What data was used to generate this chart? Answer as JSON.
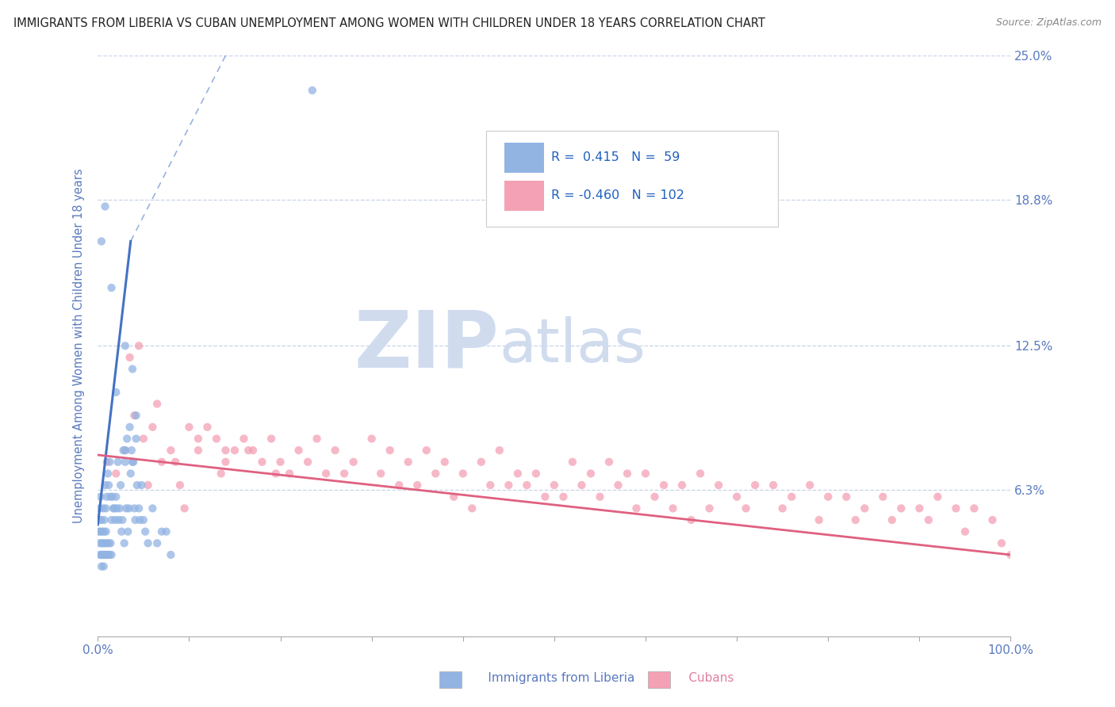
{
  "title": "IMMIGRANTS FROM LIBERIA VS CUBAN UNEMPLOYMENT AMONG WOMEN WITH CHILDREN UNDER 18 YEARS CORRELATION CHART",
  "source": "Source: ZipAtlas.com",
  "ylabel": "Unemployment Among Women with Children Under 18 years",
  "xlim": [
    0,
    100
  ],
  "ylim": [
    0,
    25
  ],
  "yticks": [
    0,
    6.3,
    12.5,
    18.8,
    25.0
  ],
  "ytick_labels": [
    "",
    "6.3%",
    "12.5%",
    "18.8%",
    "25.0%"
  ],
  "legend_R_blue": "0.415",
  "legend_N_blue": "59",
  "legend_R_pink": "-0.460",
  "legend_N_pink": "102",
  "blue_color": "#92b4e3",
  "pink_color": "#f4a0b5",
  "blue_line_color": "#4472c4",
  "pink_line_color": "#e06080",
  "watermark_zip": "ZIP",
  "watermark_atlas": "atlas",
  "watermark_color": "#d0dcee",
  "background_color": "#ffffff",
  "grid_color": "#c8d4e8",
  "blue_scatter_x": [
    0.2,
    0.3,
    0.4,
    0.5,
    0.6,
    0.7,
    0.8,
    0.9,
    1.0,
    1.1,
    1.2,
    1.3,
    1.4,
    1.5,
    1.6,
    1.7,
    1.8,
    1.9,
    2.0,
    2.1,
    2.2,
    2.3,
    2.4,
    2.5,
    2.6,
    2.7,
    2.8,
    2.9,
    3.0,
    3.1,
    3.2,
    3.3,
    3.4,
    3.5,
    3.6,
    3.7,
    3.8,
    3.9,
    4.0,
    4.1,
    4.2,
    4.3,
    4.5,
    4.6,
    4.8,
    5.0,
    5.2,
    5.5,
    6.0,
    6.5,
    7.0,
    7.5,
    8.0,
    2.0,
    3.8,
    0.4,
    0.8,
    1.5,
    3.0,
    4.2
  ],
  "blue_scatter_y": [
    5.5,
    6.0,
    5.0,
    4.5,
    5.5,
    5.0,
    6.5,
    5.5,
    6.0,
    7.0,
    6.5,
    7.5,
    6.0,
    5.0,
    6.0,
    5.5,
    5.5,
    5.0,
    6.0,
    5.5,
    7.5,
    5.0,
    5.5,
    6.5,
    4.5,
    5.0,
    8.0,
    4.0,
    7.5,
    5.5,
    8.5,
    4.5,
    5.5,
    9.0,
    7.0,
    8.0,
    7.5,
    7.5,
    5.5,
    5.0,
    8.5,
    6.5,
    5.5,
    5.0,
    6.5,
    5.0,
    4.5,
    4.0,
    5.5,
    4.0,
    4.5,
    4.5,
    3.5,
    10.5,
    11.5,
    17.0,
    18.5,
    15.0,
    12.5,
    9.5
  ],
  "blue_scatter_x2": [
    0.1,
    0.15,
    0.2,
    0.25,
    0.3,
    0.35,
    0.4,
    0.45,
    0.5,
    0.55,
    0.6,
    0.65,
    0.7,
    0.75,
    0.8,
    0.85,
    0.9,
    0.95,
    1.0,
    1.1,
    1.2,
    1.3,
    1.4,
    1.5,
    3.0,
    23.5
  ],
  "blue_scatter_y2": [
    4.5,
    5.0,
    4.0,
    3.5,
    4.5,
    3.5,
    3.0,
    4.0,
    3.5,
    4.0,
    3.5,
    3.0,
    4.5,
    3.5,
    4.0,
    3.5,
    4.5,
    4.0,
    3.5,
    3.5,
    4.0,
    3.5,
    4.0,
    3.5,
    8.0,
    23.5
  ],
  "pink_scatter_x": [
    1.0,
    2.0,
    3.0,
    4.0,
    5.0,
    6.0,
    7.0,
    8.0,
    9.0,
    10.0,
    11.0,
    12.0,
    13.0,
    14.0,
    15.0,
    16.0,
    17.0,
    18.0,
    19.0,
    20.0,
    22.0,
    24.0,
    26.0,
    28.0,
    30.0,
    32.0,
    34.0,
    36.0,
    38.0,
    40.0,
    42.0,
    44.0,
    46.0,
    48.0,
    50.0,
    52.0,
    54.0,
    56.0,
    58.0,
    60.0,
    62.0,
    64.0,
    66.0,
    68.0,
    70.0,
    72.0,
    74.0,
    76.0,
    78.0,
    80.0,
    82.0,
    84.0,
    86.0,
    88.0,
    90.0,
    92.0,
    94.0,
    96.0,
    98.0,
    100.0,
    3.5,
    4.5,
    6.5,
    8.5,
    11.0,
    13.5,
    16.5,
    19.5,
    23.0,
    27.0,
    31.0,
    35.0,
    39.0,
    43.0,
    47.0,
    51.0,
    55.0,
    59.0,
    63.0,
    67.0,
    71.0,
    75.0,
    79.0,
    83.0,
    87.0,
    91.0,
    95.0,
    99.0,
    5.5,
    9.5,
    14.0,
    21.0,
    25.0,
    33.0,
    37.0,
    41.0,
    45.0,
    49.0,
    53.0,
    57.0,
    61.0,
    65.0
  ],
  "pink_scatter_y": [
    7.5,
    7.0,
    8.0,
    9.5,
    8.5,
    9.0,
    7.5,
    8.0,
    6.5,
    9.0,
    8.5,
    9.0,
    8.5,
    8.0,
    8.0,
    8.5,
    8.0,
    7.5,
    8.5,
    7.5,
    8.0,
    8.5,
    8.0,
    7.5,
    8.5,
    8.0,
    7.5,
    8.0,
    7.5,
    7.0,
    7.5,
    8.0,
    7.0,
    7.0,
    6.5,
    7.5,
    7.0,
    7.5,
    7.0,
    7.0,
    6.5,
    6.5,
    7.0,
    6.5,
    6.0,
    6.5,
    6.5,
    6.0,
    6.5,
    6.0,
    6.0,
    5.5,
    6.0,
    5.5,
    5.5,
    6.0,
    5.5,
    5.5,
    5.0,
    3.5,
    12.0,
    12.5,
    10.0,
    7.5,
    8.0,
    7.0,
    8.0,
    7.0,
    7.5,
    7.0,
    7.0,
    6.5,
    6.0,
    6.5,
    6.5,
    6.0,
    6.0,
    5.5,
    5.5,
    5.5,
    5.5,
    5.5,
    5.0,
    5.0,
    5.0,
    5.0,
    4.5,
    4.0,
    6.5,
    5.5,
    7.5,
    7.0,
    7.0,
    6.5,
    7.0,
    5.5,
    6.5,
    6.0,
    6.5,
    6.5,
    6.0,
    5.0
  ],
  "blue_line_x1": 0.0,
  "blue_line_y1": 4.8,
  "blue_line_x2": 3.6,
  "blue_line_y2": 17.0,
  "blue_dash_x2": 14.0,
  "blue_dash_y2": 25.0,
  "pink_line_x1": 0.0,
  "pink_line_y1": 7.8,
  "pink_line_x2": 100.0,
  "pink_line_y2": 3.5
}
